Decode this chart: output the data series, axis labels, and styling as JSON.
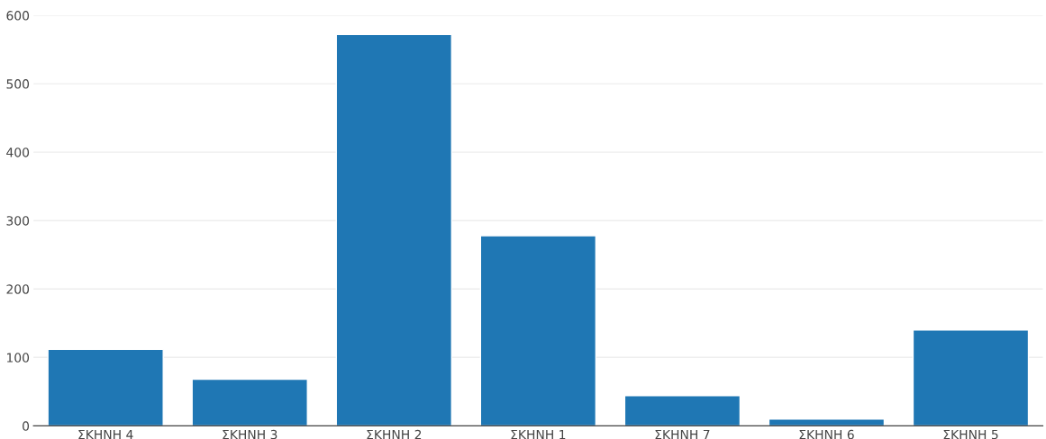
{
  "chart_data": {
    "type": "bar",
    "categories": [
      "ΣΚΗΝΗ 4",
      "ΣΚΗΝΗ 3",
      "ΣΚΗΝΗ 2",
      "ΣΚΗΝΗ 1",
      "ΣΚΗΝΗ 7",
      "ΣΚΗΝΗ 6",
      "ΣΚΗΝΗ 5"
    ],
    "values": [
      112,
      68,
      572,
      278,
      44,
      10,
      140
    ],
    "color": "#1f77b4",
    "ylim": [
      0,
      600
    ],
    "yticks": [
      0,
      100,
      200,
      300,
      400,
      500,
      600
    ],
    "grid": "y"
  }
}
